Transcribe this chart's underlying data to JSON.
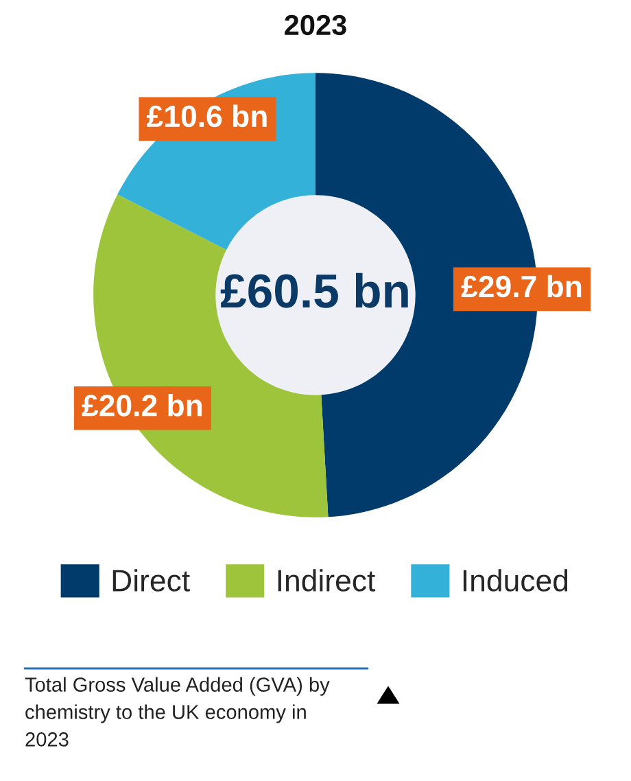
{
  "chart_data": {
    "type": "donut",
    "title": "2023",
    "categories": [
      "Direct",
      "Indirect",
      "Induced"
    ],
    "values": [
      29.7,
      20.2,
      10.6
    ],
    "colors": [
      "#003b6b",
      "#9ec43b",
      "#33b1d8"
    ],
    "value_labels": [
      "£29.7 bn",
      "£20.2 bn",
      "£10.6 bn"
    ],
    "legend": "bottom",
    "annotations": [
      "£60.5 bn",
      "Total Gross Value Added (GVA) by chemistry to the UK economy in 2023"
    ]
  }
}
